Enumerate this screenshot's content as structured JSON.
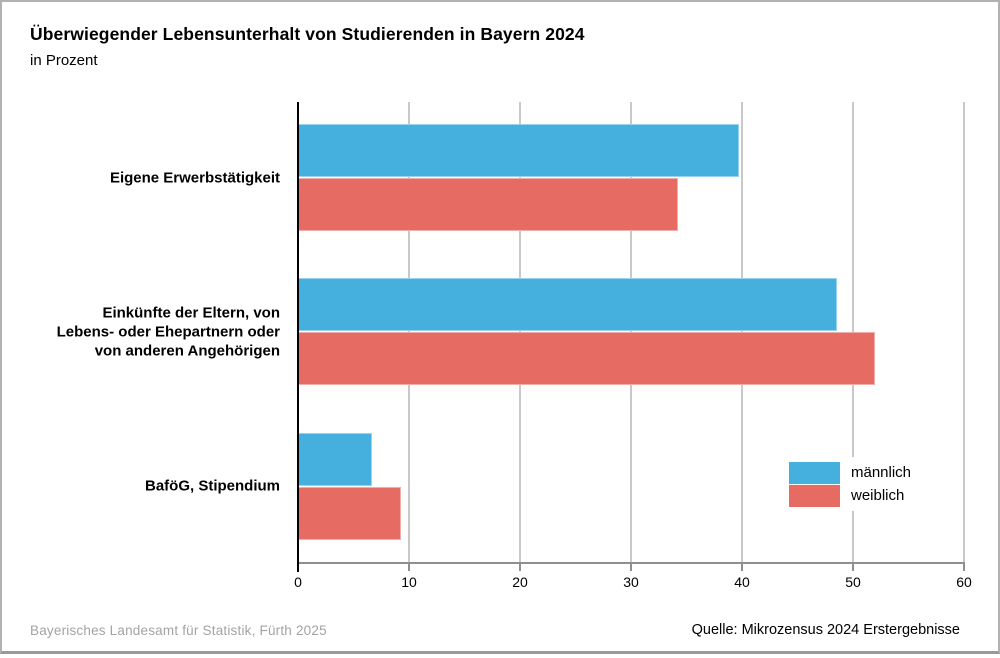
{
  "title": "Überwiegender Lebensunterhalt von Studierenden in Bayern 2024",
  "subtitle": "in Prozent",
  "footer": {
    "publisher": "Bayerisches Landesamt für Statistik, Fürth 2025",
    "source": "Quelle: Mikrozensus 2024 Erstergebnisse"
  },
  "legend": {
    "items": [
      {
        "label": "männlich",
        "color": "#45afde"
      },
      {
        "label": "weiblich",
        "color": "#e66b63"
      }
    ],
    "position": "inside-right-bottom"
  },
  "chart_data": {
    "type": "bar",
    "orientation": "horizontal",
    "title": "Überwiegender Lebensunterhalt von Studierenden in Bayern 2024",
    "subtitle": "in Prozent",
    "unit": "Prozent",
    "categories": [
      "Eigene Erwerbstätigkeit",
      "Einkünfte der Eltern, von Lebens- oder Ehepartnern oder von anderen Angehörigen",
      "BaföG, Stipendium"
    ],
    "category_lines": [
      [
        "Eigene Erwerbstätigkeit"
      ],
      [
        "Einkünfte der Eltern, von",
        "Lebens- oder Ehepartnern oder",
        "von anderen Angehörigen"
      ],
      [
        "BaföG, Stipendium"
      ]
    ],
    "series": [
      {
        "name": "männlich",
        "color": "#45afde",
        "values": [
          39.7,
          48.6,
          6.7
        ]
      },
      {
        "name": "weiblich",
        "color": "#e66b63",
        "values": [
          34.2,
          52.0,
          9.3
        ]
      }
    ],
    "xlim": [
      0,
      60
    ],
    "xticks": [
      0,
      10,
      20,
      30,
      40,
      50,
      60
    ],
    "grid": true,
    "axis_color": "#8f8f8f",
    "gridline_color": "#c9c9c9"
  }
}
